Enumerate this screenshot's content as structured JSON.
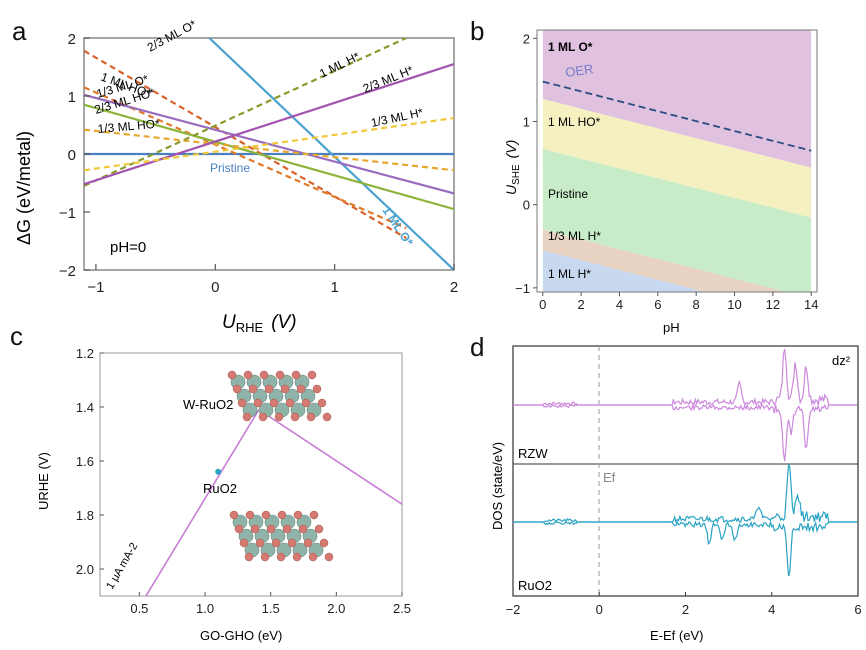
{
  "chart_data": [
    {
      "panel": "a",
      "type": "line",
      "xlabel": "URHE  (V)",
      "ylabel": "ΔG (eV/metal)",
      "xlim": [
        -1.1,
        2.0
      ],
      "ylim": [
        -2,
        2
      ],
      "xticks": [
        "−1",
        "0",
        "1",
        "2"
      ],
      "yticks": [
        "−2",
        "−1",
        "0",
        "1",
        "2"
      ],
      "annotation": "pH=0",
      "series": [
        {
          "name": "Pristine",
          "x": [
            -1.1,
            2.0
          ],
          "y": [
            0,
            0
          ],
          "color": "#4a7fc1",
          "dash": false
        },
        {
          "name": "1 ML O*",
          "x": [
            -0.05,
            2.0
          ],
          "y": [
            2.0,
            -2.0
          ],
          "color": "#4aa3cf",
          "dash": false
        },
        {
          "name": "2/3 ML O*",
          "x": [
            -1.1,
            1.6
          ],
          "y": [
            1.78,
            -1.45
          ],
          "color": "#d9622b",
          "dash": true
        },
        {
          "name": "1 ML HO*",
          "x": [
            -1.1,
            1.6
          ],
          "y": [
            1.15,
            -1.28
          ],
          "color": "#e07a2a",
          "dash": true
        },
        {
          "name": "1/3 ML O*",
          "x": [
            -1.1,
            2.0
          ],
          "y": [
            1.02,
            -0.68
          ],
          "color": "#9a6cc0",
          "dash": false
        },
        {
          "name": "2/3 ML HO*",
          "x": [
            -1.1,
            2.0
          ],
          "y": [
            0.85,
            -0.95
          ],
          "color": "#8cb33a",
          "dash": false
        },
        {
          "name": "1/3 ML HO*",
          "x": [
            -1.1,
            2.0
          ],
          "y": [
            0.42,
            -0.28
          ],
          "color": "#e6a82e",
          "dash": true
        },
        {
          "name": "1 ML H*",
          "x": [
            -1.1,
            1.6
          ],
          "y": [
            -0.55,
            2.0
          ],
          "color": "#8a9a2a",
          "dash": true
        },
        {
          "name": "2/3 ML H*",
          "x": [
            -1.1,
            2.0
          ],
          "y": [
            -0.52,
            1.55
          ],
          "color": "#a254b0",
          "dash": false
        },
        {
          "name": "1/3 ML H*",
          "x": [
            -1.1,
            2.0
          ],
          "y": [
            -0.28,
            0.62
          ],
          "color": "#f0c93a",
          "dash": true
        }
      ],
      "line_labels": [
        "1 ML H*",
        "2/3 ML O*",
        "1 ML HO*",
        "1/3 ML O*",
        "2/3 ML HO*",
        "1/3 ML HO*",
        "2/3 ML H*",
        "1/3 ML H*",
        "Pristine",
        "1 ML O*"
      ]
    },
    {
      "panel": "b",
      "type": "area",
      "xlabel": "pH",
      "ylabel": "USHE (V)",
      "xlim": [
        -0.3,
        14.3
      ],
      "ylim": [
        -1.05,
        2.1
      ],
      "xticks": [
        "0",
        "2",
        "4",
        "6",
        "8",
        "10",
        "12",
        "14"
      ],
      "yticks": [
        "−1",
        "0",
        "1",
        "2"
      ],
      "slope_V_per_pH": -0.059,
      "regions": [
        {
          "label": "1 ML O*",
          "lower_at_pH0": 1.27,
          "color": "#e0c2e0"
        },
        {
          "label": "1 ML HO*",
          "lower_at_pH0": 0.67,
          "color": "#f5f0c0"
        },
        {
          "label": "Pristine",
          "lower_at_pH0": -0.3,
          "color": "#c7ecc7"
        },
        {
          "label": "1/3 ML H*",
          "lower_at_pH0": -0.55,
          "color": "#e8d3c2"
        },
        {
          "label": "1 ML H*",
          "lower_at_pH0": -1.05,
          "color": "#c8d8ee"
        }
      ],
      "oer_line": {
        "label": "OER",
        "y_at_pH0": 1.48,
        "slope": -0.0594,
        "color": "#2b4c7e"
      }
    },
    {
      "panel": "c",
      "type": "line",
      "xlabel": "GO-GHO (eV)",
      "ylabel": "URHE (V)",
      "xlim": [
        0.2,
        2.5
      ],
      "ylim_inverted": [
        1.2,
        2.1
      ],
      "xticks": [
        "0.5",
        "1.0",
        "1.5",
        "2.0",
        "2.5"
      ],
      "yticks": [
        "1.2",
        "1.4",
        "1.6",
        "1.8",
        "2.0"
      ],
      "series": [
        {
          "name": "volcano",
          "x": [
            0.55,
            1.41,
            2.5
          ],
          "y": [
            2.1,
            1.41,
            1.76
          ],
          "color": "#c97cd6"
        }
      ],
      "points": [
        {
          "label": "W-RuO2",
          "x": 1.37,
          "y": 1.42
        },
        {
          "label": "RuO2",
          "x": 1.1,
          "y": 1.64
        }
      ],
      "annotation": "1 μA mA-2"
    },
    {
      "panel": "d",
      "type": "line",
      "xlabel": "E-Ef (eV)",
      "ylabel": "DOS (state/eV)",
      "xlim": [
        -2,
        6
      ],
      "xticks": [
        "−2",
        "0",
        "2",
        "4",
        "6"
      ],
      "fermi_label": "Ef",
      "orbital_label": "dz²",
      "series": [
        {
          "name": "RZW",
          "color": "#cc88dd"
        },
        {
          "name": "RuO2",
          "color": "#2aa3c4"
        }
      ]
    }
  ],
  "labels": {
    "panel_a": "a",
    "panel_b": "b",
    "panel_c": "c",
    "panel_d": "d",
    "a_ylabel": "ΔG (eV/metal)",
    "a_xlabel_main": "U",
    "a_xlabel_sub": "RHE",
    "a_xlabel_unit": "(V)",
    "a_ph": "pH=0",
    "b_xlabel": "pH",
    "b_ylabel_main": "U",
    "b_ylabel_sub": "SHE",
    "b_ylabel_unit": "(V)",
    "b_oer": "OER",
    "c_xlabel": "GO-GHO (eV)",
    "c_ylabel": "URHE (V)",
    "c_w_ruo2": "W-RuO2",
    "c_ruo2": "RuO2",
    "c_current": "1 μA mA-2",
    "d_ylabel": "DOS (state/eV)",
    "d_xlabel": "E-Ef (eV)",
    "d_rzw": "RZW",
    "d_ruo2": "RuO2",
    "d_ef": "Ef",
    "d_orbital": "dz²"
  }
}
